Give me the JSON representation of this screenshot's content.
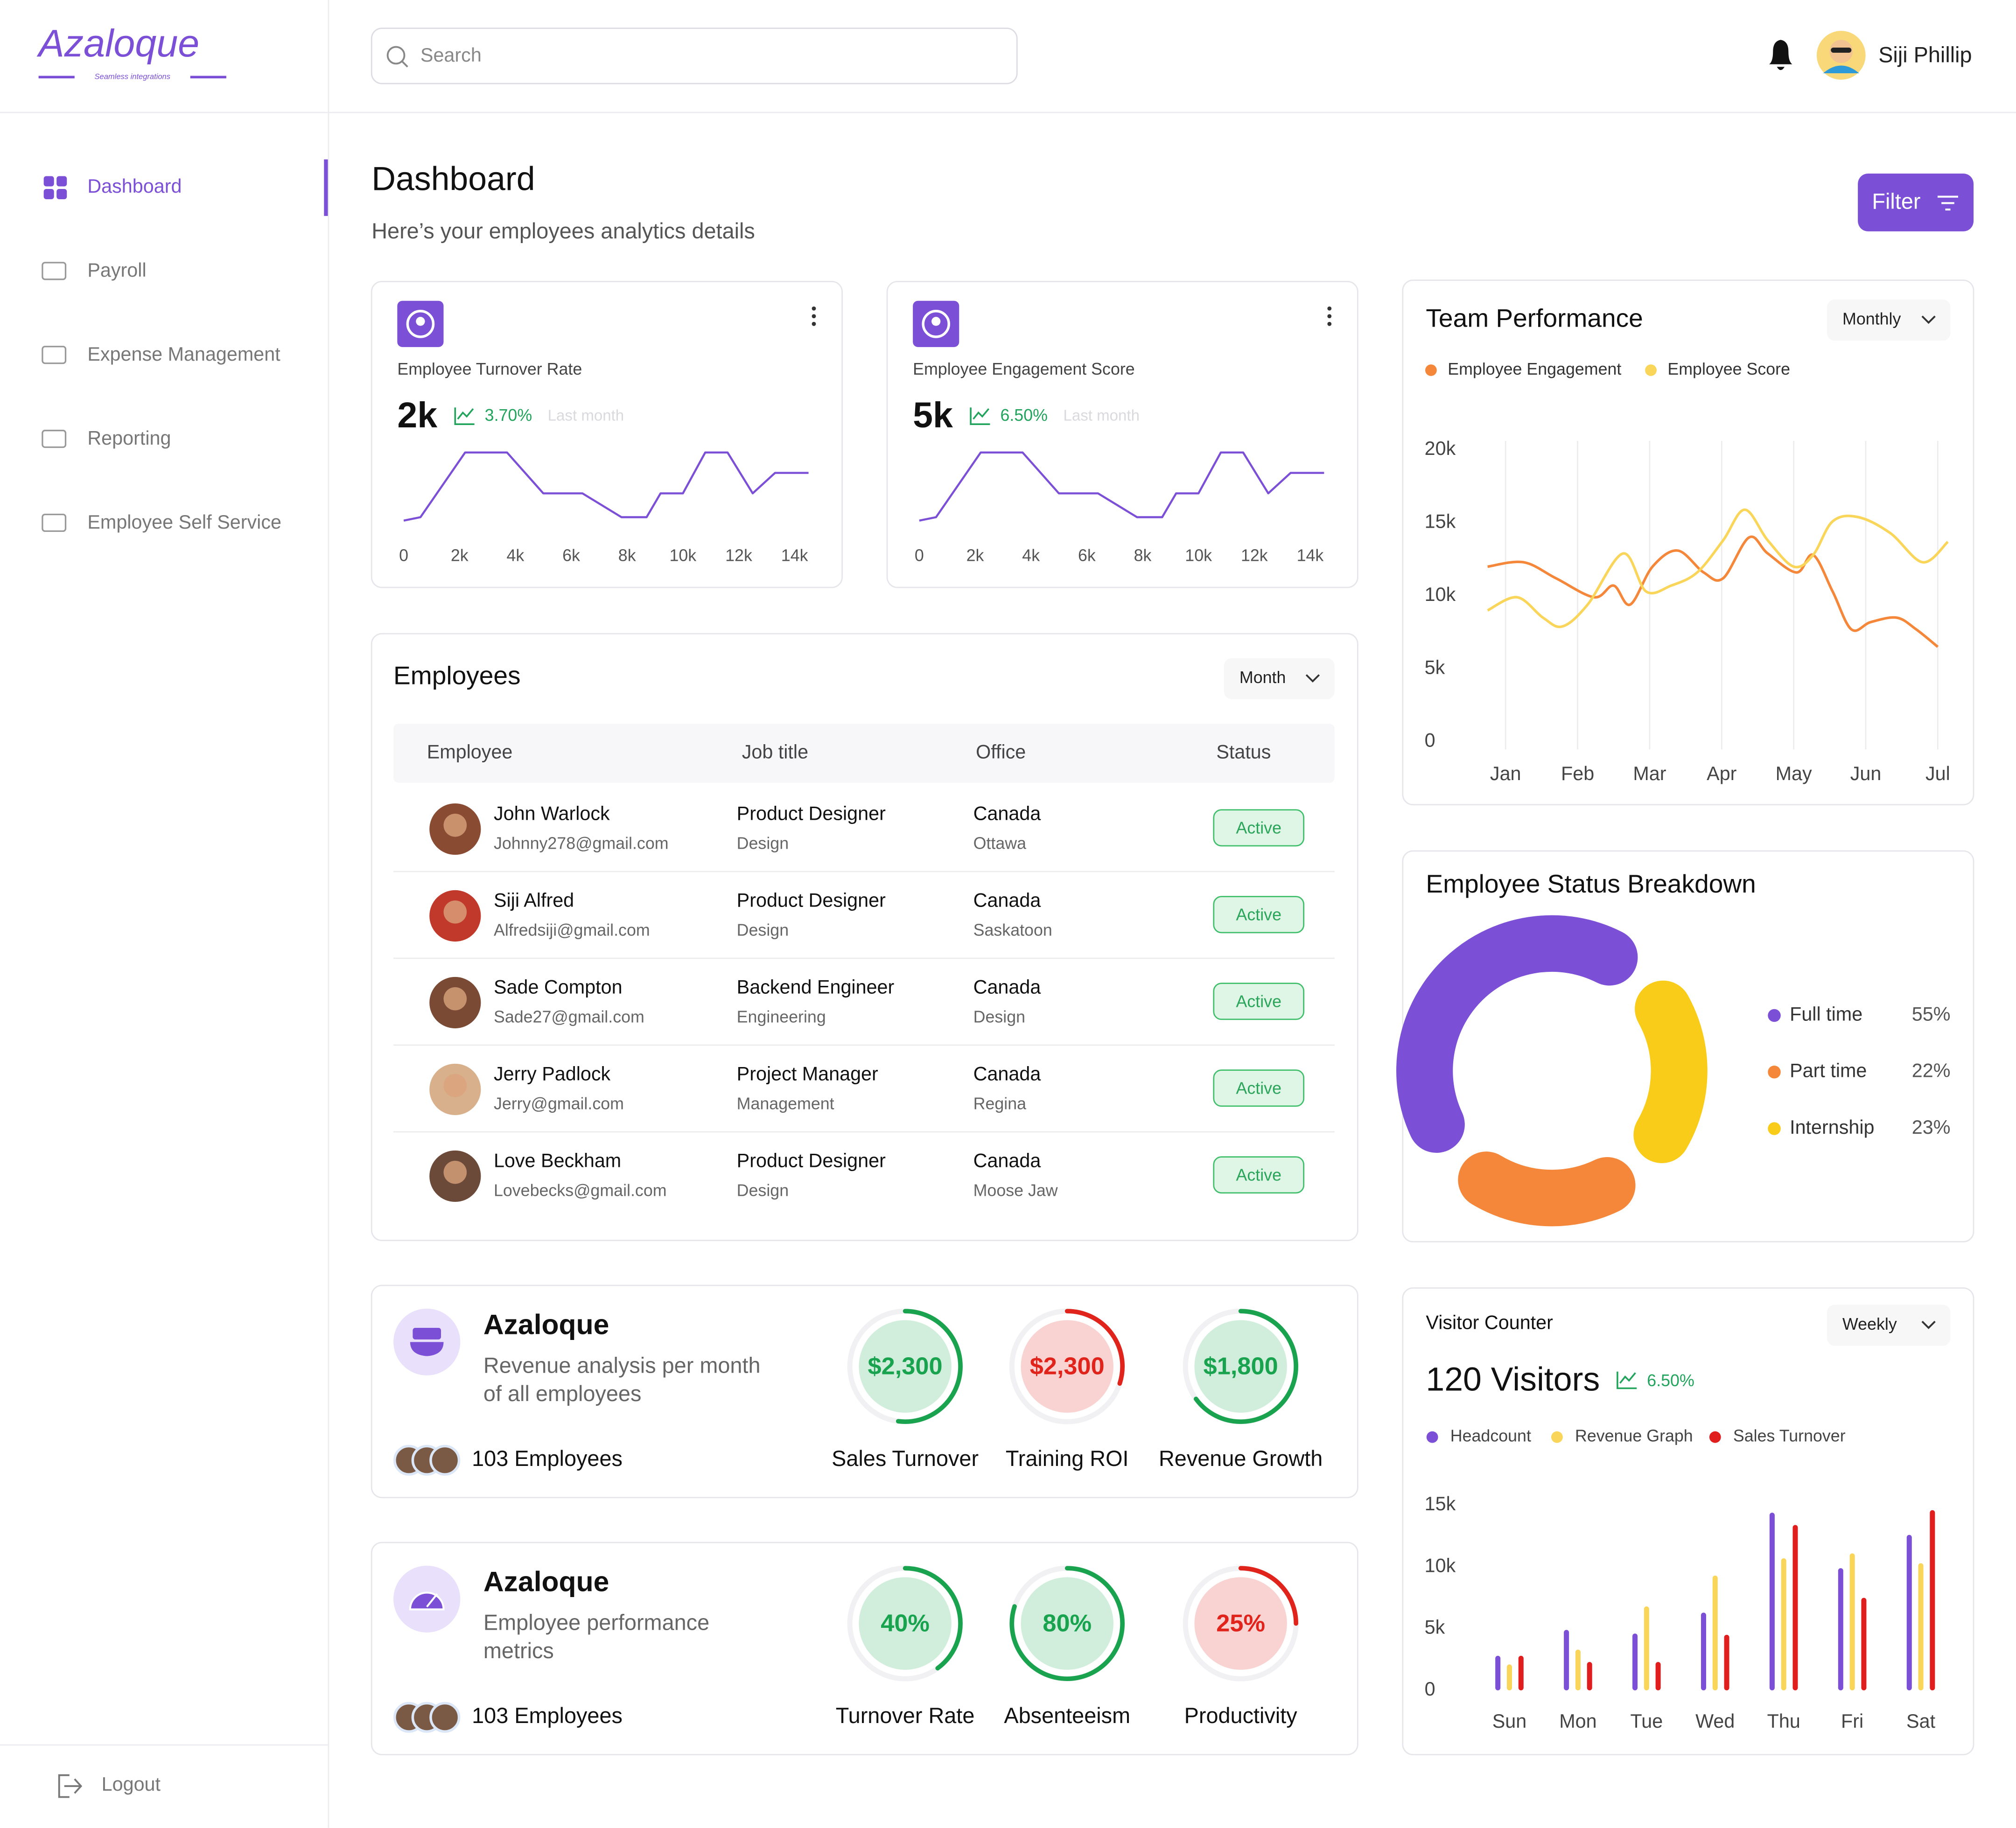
{
  "brand": {
    "name": "Azaloque",
    "tagline": "Seamless integrations"
  },
  "search_placeholder": "Search",
  "user": {
    "name": "Siji Phillip"
  },
  "nav": [
    "Dashboard",
    "Payroll",
    "Expense Management",
    "Reporting",
    "Employee Self Service"
  ],
  "logout": "Logout",
  "header": {
    "title": "Dashboard",
    "subtitle": "Here’s your employees analytics details",
    "filter": "Filter"
  },
  "stat_cards": [
    {
      "label": "Employee Turnover Rate",
      "value": "2k",
      "change": "3.70%",
      "period": "Last month",
      "chart": {
        "type": "line",
        "color": "#7b4fd6",
        "xlim": [
          0,
          14500
        ],
        "ylim": [
          0,
          100
        ],
        "xticks": [
          0,
          {
            "value": 2000,
            "label": "2k"
          },
          {
            "value": 4000,
            "label": "4k"
          },
          {
            "value": 6000,
            "label": "6k"
          },
          {
            "value": 8000,
            "label": "8k"
          },
          {
            "value": 10000,
            "label": "10k"
          },
          {
            "value": 12000,
            "label": "12k"
          },
          {
            "value": 14000,
            "label": "14k"
          }
        ],
        "x": [
          0,
          600,
          2200,
          3700,
          5000,
          6400,
          7800,
          8700,
          9200,
          10000,
          10800,
          11600,
          12500,
          13300,
          14500
        ],
        "values": [
          0,
          5,
          100,
          100,
          40,
          40,
          5,
          5,
          40,
          40,
          100,
          100,
          40,
          70,
          70
        ]
      }
    },
    {
      "label": "Employee Engagement Score",
      "value": "5k",
      "change": "6.50%",
      "period": "Last month",
      "chart": {
        "type": "line",
        "color": "#7b4fd6",
        "xlim": [
          0,
          14500
        ],
        "ylim": [
          0,
          100
        ],
        "xticks": [
          0,
          {
            "value": 2000,
            "label": "2k"
          },
          {
            "value": 4000,
            "label": "4k"
          },
          {
            "value": 6000,
            "label": "6k"
          },
          {
            "value": 8000,
            "label": "8k"
          },
          {
            "value": 10000,
            "label": "10k"
          },
          {
            "value": 12000,
            "label": "12k"
          },
          {
            "value": 14000,
            "label": "14k"
          }
        ],
        "x": [
          0,
          600,
          2200,
          3700,
          5000,
          6400,
          7800,
          8700,
          9200,
          10000,
          10800,
          11600,
          12500,
          13300,
          14500
        ],
        "values": [
          0,
          5,
          100,
          100,
          40,
          40,
          5,
          5,
          40,
          40,
          100,
          100,
          40,
          70,
          70
        ]
      }
    }
  ],
  "team_performance": {
    "type": "line",
    "title": "Team Performance",
    "period": "Monthly",
    "grid": true,
    "xlim": [
      -0.25,
      6.14
    ],
    "xticks": [
      {
        "value": 0,
        "label": "Jan"
      },
      {
        "value": 1,
        "label": "Feb"
      },
      {
        "value": 2,
        "label": "Mar"
      },
      {
        "value": 3,
        "label": "Apr"
      },
      {
        "value": 4,
        "label": "May"
      },
      {
        "value": 5,
        "label": "Jun"
      },
      {
        "value": 6,
        "label": "Jul"
      }
    ],
    "ylim": [
      0,
      20000
    ],
    "yticks": [
      0,
      {
        "value": 5000,
        "label": "5k"
      },
      {
        "value": 10000,
        "label": "10k"
      },
      {
        "value": 15000,
        "label": "15k"
      },
      {
        "value": 20000,
        "label": "20k"
      }
    ],
    "series": [
      {
        "name": "Employee Engagement",
        "color": "#f5873a",
        "x": [
          -0.25,
          0.25,
          0.7,
          1.23,
          1.5,
          1.73,
          2.04,
          2.39,
          2.75,
          3.02,
          3.38,
          3.64,
          4.04,
          4.27,
          4.54,
          4.8,
          5.07,
          5.43,
          5.7,
          6.0
        ],
        "values": [
          12000,
          12300,
          11200,
          9900,
          10700,
          9400,
          12000,
          13100,
          11600,
          11200,
          14000,
          12900,
          11600,
          12800,
          10300,
          7700,
          8200,
          8500,
          7700,
          6500
        ]
      },
      {
        "name": "Employee Score",
        "color": "#f9d55a",
        "x": [
          -0.25,
          0.16,
          0.52,
          0.79,
          1.14,
          1.63,
          1.95,
          2.3,
          2.66,
          3.02,
          3.32,
          3.64,
          4.0,
          4.27,
          4.54,
          4.89,
          5.34,
          5.79,
          6.14
        ],
        "values": [
          9000,
          9900,
          8500,
          7900,
          9400,
          12900,
          10300,
          10700,
          11600,
          13800,
          15900,
          13800,
          12000,
          12800,
          15100,
          15400,
          14300,
          12300,
          13700
        ]
      }
    ]
  },
  "employees": {
    "title": "Employees",
    "period": "Month",
    "columns": [
      "Employee",
      "Job title",
      "Office",
      "Status"
    ],
    "rows": [
      {
        "name": "John Warlock",
        "email": "Johnny278@gmail.com",
        "job_title": "Product Designer",
        "department": "Design",
        "country": "Canada",
        "city": "Ottawa",
        "status": "Active"
      },
      {
        "name": "Siji Alfred",
        "email": "Alfredsiji@gmail.com",
        "job_title": "Product Designer",
        "department": "Design",
        "country": "Canada",
        "city": "Saskatoon",
        "status": "Active"
      },
      {
        "name": "Sade Compton",
        "email": "Sade27@gmail.com",
        "job_title": "Backend Engineer",
        "department": "Engineering",
        "country": "Canada",
        "city": "Design",
        "status": "Active"
      },
      {
        "name": "Jerry Padlock",
        "email": "Jerry@gmail.com",
        "job_title": "Project Manager",
        "department": "Management",
        "country": "Canada",
        "city": "Regina",
        "status": "Active"
      },
      {
        "name": "Love Beckham",
        "email": "Lovebecks@gmail.com",
        "job_title": "Product Designer",
        "department": "Design",
        "country": "Canada",
        "city": "Moose Jaw",
        "status": "Active"
      }
    ]
  },
  "status_breakdown": {
    "type": "donut",
    "title": "Employee Status Breakdown",
    "categories": [
      "Full time",
      "Part time",
      "Internship"
    ],
    "values": [
      55,
      22,
      23
    ],
    "value_labels": [
      "55%",
      "22%",
      "23%"
    ],
    "colors": [
      "#7b4fd6",
      "#f5873a",
      "#f9cc1a"
    ]
  },
  "gauge_cards": [
    {
      "title": "Azaloque",
      "description": "Revenue analysis per month of all employees",
      "employees": "103 Employees",
      "gauges": [
        {
          "label": "Sales Turnover",
          "value_label": "$2,300",
          "progress": 52,
          "color": "#19a34f"
        },
        {
          "label": "Training ROI",
          "value_label": "$2,300",
          "progress": 30,
          "color": "#e0241b"
        },
        {
          "label": "Revenue Growth",
          "value_label": "$1,800",
          "progress": 65,
          "color": "#19a34f"
        }
      ]
    },
    {
      "title": "Azaloque",
      "description": "Employee performance metrics",
      "employees": "103 Employees",
      "gauges": [
        {
          "label": "Turnover Rate",
          "value_label": "40%",
          "progress": 40,
          "color": "#19a34f"
        },
        {
          "label": "Absenteeism",
          "value_label": "80%",
          "progress": 80,
          "color": "#19a34f"
        },
        {
          "label": "Productivity",
          "value_label": "25%",
          "progress": 25,
          "color": "#e0241b"
        }
      ]
    }
  ],
  "visitors": {
    "type": "bar",
    "title": "Visitor Counter",
    "period": "Weekly",
    "headline": "120 Visitors",
    "change": "6.50%",
    "categories": [
      "Sun",
      "Mon",
      "Tue",
      "Wed",
      "Thu",
      "Fri",
      "Sat"
    ],
    "ylim": [
      0,
      15000
    ],
    "yticks": [
      0,
      {
        "value": 5000,
        "label": "5k"
      },
      {
        "value": 10000,
        "label": "10k"
      },
      {
        "value": 15000,
        "label": "15k"
      }
    ],
    "series": [
      {
        "name": "Headcount",
        "color": "#7b4fd6",
        "values": [
          2800,
          4900,
          4600,
          6300,
          14400,
          9900,
          12600
        ]
      },
      {
        "name": "Revenue Graph",
        "color": "#f9d55a",
        "values": [
          2100,
          3300,
          6800,
          9300,
          10700,
          11100,
          10300
        ]
      },
      {
        "name": "Sales Turnover",
        "color": "#e01e1e",
        "values": [
          2800,
          2300,
          2300,
          4500,
          13400,
          7500,
          14600
        ]
      }
    ]
  }
}
